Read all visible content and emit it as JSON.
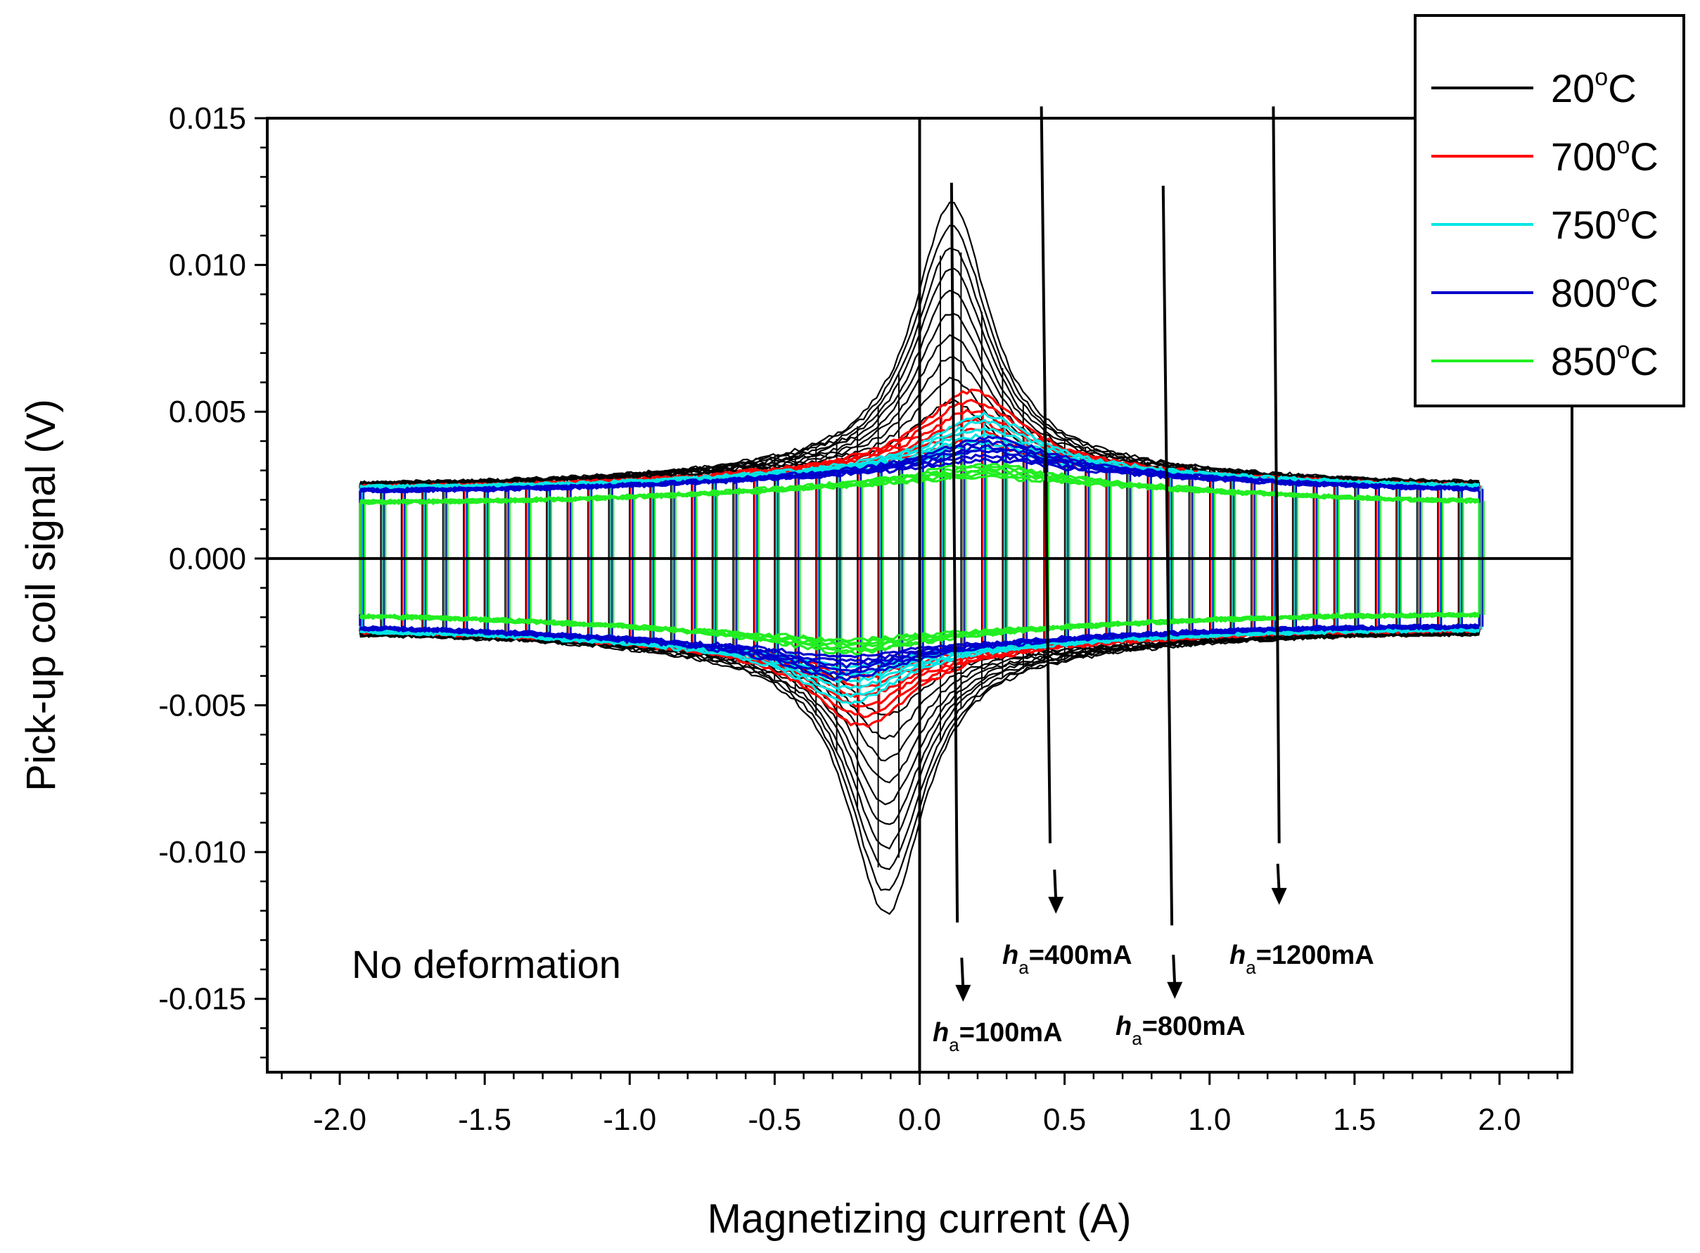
{
  "chart_data": {
    "type": "line",
    "title": "",
    "xlabel": "Magnetizing current (A)",
    "ylabel": "Pick-up coil signal (V)",
    "xlim": [
      -2.25,
      2.25
    ],
    "ylim": [
      -0.0175,
      0.015
    ],
    "grid": false,
    "legend_position": "top-right",
    "x_ticks": [
      {
        "value": -2.0,
        "label": "-2.0"
      },
      {
        "value": -1.5,
        "label": "-1.5"
      },
      {
        "value": -1.0,
        "label": "-1.0"
      },
      {
        "value": -0.5,
        "label": "-0.5"
      },
      {
        "value": 0.0,
        "label": "0.0"
      },
      {
        "value": 0.5,
        "label": "0.5"
      },
      {
        "value": 1.0,
        "label": "1.0"
      },
      {
        "value": 1.5,
        "label": "1.5"
      },
      {
        "value": 2.0,
        "label": "2.0"
      }
    ],
    "y_ticks": [
      {
        "value": 0.015,
        "label": "0.015"
      },
      {
        "value": 0.01,
        "label": "0.010"
      },
      {
        "value": 0.005,
        "label": "0.005"
      },
      {
        "value": 0.0,
        "label": "0.000"
      },
      {
        "value": -0.005,
        "label": "-0.005"
      },
      {
        "value": -0.01,
        "label": "-0.010"
      },
      {
        "value": -0.015,
        "label": "-0.015"
      }
    ],
    "current_range": [
      -1.93,
      1.93
    ],
    "series": [
      {
        "name": "20°C",
        "color": "#000000",
        "envelope_peak": 0.0115,
        "peak_x": 0.11,
        "baseline": 0.0025,
        "spread": 0.45,
        "upper_end": 0.0025,
        "lower_end": -0.0025
      },
      {
        "name": "700°C",
        "color": "#ff0000",
        "envelope_peak": 0.0051,
        "peak_x": 0.18,
        "baseline": 0.0024,
        "spread": 0.6,
        "upper_end": 0.0024,
        "lower_end": -0.0024
      },
      {
        "name": "750°C",
        "color": "#00e5e5",
        "envelope_peak": 0.0043,
        "peak_x": 0.22,
        "baseline": 0.0024,
        "spread": 0.6,
        "upper_end": 0.0024,
        "lower_end": -0.0024
      },
      {
        "name": "800°C",
        "color": "#0000cc",
        "envelope_peak": 0.0035,
        "peak_x": 0.24,
        "baseline": 0.0023,
        "spread": 0.7,
        "upper_end": 0.0023,
        "lower_end": -0.0023
      },
      {
        "name": "850°C",
        "color": "#22ee22",
        "envelope_peak": 0.0026,
        "peak_x": 0.22,
        "baseline": 0.0019,
        "spread": 0.8,
        "upper_end": 0.0019,
        "lower_end": -0.0019
      }
    ],
    "legend": [
      {
        "label_main": "20",
        "label_unit": "C",
        "color": "#000000"
      },
      {
        "label_main": "700",
        "label_unit": "C",
        "color": "#ff0000"
      },
      {
        "label_main": "750",
        "label_unit": "C",
        "color": "#00e5e5"
      },
      {
        "label_main": "800",
        "label_unit": "C",
        "color": "#0000cc"
      },
      {
        "label_main": "850",
        "label_unit": "C",
        "color": "#22ee22"
      }
    ],
    "degree_symbol": "o",
    "note": "No deformation",
    "annotations": [
      {
        "italic": "h",
        "sub": "a",
        "rest": "=100mA",
        "line_x": [
          0.11,
          0.13
        ],
        "line_y": [
          0.0128,
          -0.0124
        ],
        "arrow_x": 0.15,
        "arrow_top": -0.0136,
        "arrow_bottom": -0.0151
      },
      {
        "italic": "h",
        "sub": "a",
        "rest": "=400mA",
        "line_x": [
          0.42,
          0.45
        ],
        "line_y": [
          0.0154,
          -0.0097
        ],
        "arrow_x": 0.47,
        "arrow_top": -0.0106,
        "arrow_bottom": -0.0121
      },
      {
        "italic": "h",
        "sub": "a",
        "rest": "=800mA",
        "line_x": [
          0.84,
          0.87
        ],
        "line_y": [
          0.0127,
          -0.0125
        ],
        "arrow_x": 0.88,
        "arrow_top": -0.0135,
        "arrow_bottom": -0.015
      },
      {
        "italic": "h",
        "sub": "a",
        "rest": "=1200mA",
        "line_x": [
          1.22,
          1.24
        ],
        "line_y": [
          0.0154,
          -0.0097
        ],
        "arrow_x": 1.24,
        "arrow_top": -0.0104,
        "arrow_bottom": -0.0118
      }
    ]
  }
}
